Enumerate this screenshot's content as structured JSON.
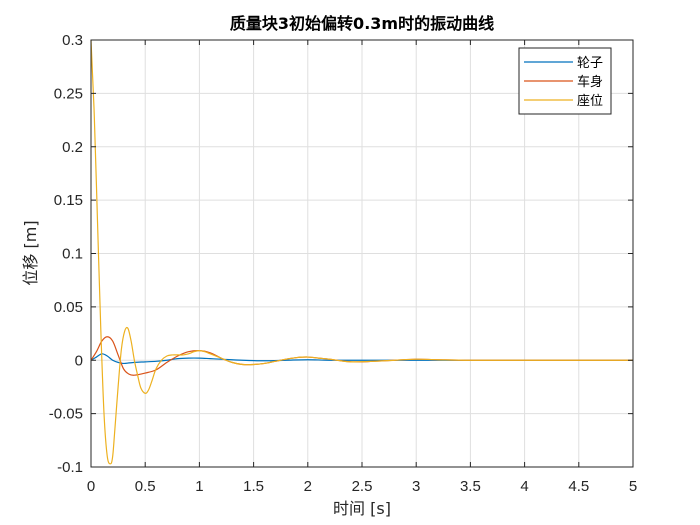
{
  "chart_data": {
    "type": "line",
    "title": "质量块3初始偏转0.3m时的振动曲线",
    "xlabel": "时间 [s]",
    "ylabel": "位移 [m]",
    "xlim": [
      0,
      5
    ],
    "ylim": [
      -0.1,
      0.3
    ],
    "xticks": [
      0,
      0.5,
      1,
      1.5,
      2,
      2.5,
      3,
      3.5,
      4,
      4.5,
      5
    ],
    "xtick_labels": [
      "0",
      "0.5",
      "1",
      "1.5",
      "2",
      "2.5",
      "3",
      "3.5",
      "4",
      "4.5",
      "5"
    ],
    "yticks": [
      -0.1,
      -0.05,
      0,
      0.05,
      0.1,
      0.15,
      0.2,
      0.25,
      0.3
    ],
    "ytick_labels": [
      "-0.1",
      "-0.05",
      "0",
      "0.05",
      "0.1",
      "0.15",
      "0.2",
      "0.25",
      "0.3"
    ],
    "grid": true,
    "legend_position": "top-right",
    "series": [
      {
        "name": "轮子",
        "color": "#0072BD",
        "x": [
          0,
          0.05,
          0.1,
          0.15,
          0.2,
          0.25,
          0.3,
          0.4,
          0.5,
          0.6,
          0.7,
          0.8,
          0.9,
          1.0,
          1.1,
          1.2,
          1.4,
          1.6,
          1.8,
          2.0,
          2.2,
          2.5,
          3.0,
          3.5,
          4.0,
          5.0
        ],
        "y": [
          0,
          0.003,
          0.006,
          0.004,
          0.0,
          -0.002,
          -0.003,
          -0.002,
          -0.0015,
          -0.001,
          0.0,
          0.0015,
          0.002,
          0.002,
          0.0015,
          0.001,
          0.0,
          -0.0005,
          0.0,
          0.0005,
          0.0,
          0.0,
          0.0,
          0.0,
          0.0,
          0.0
        ]
      },
      {
        "name": "车身",
        "color": "#D95319",
        "x": [
          0,
          0.05,
          0.1,
          0.15,
          0.2,
          0.25,
          0.3,
          0.35,
          0.4,
          0.5,
          0.6,
          0.7,
          0.8,
          0.9,
          1.0,
          1.1,
          1.2,
          1.3,
          1.4,
          1.5,
          1.6,
          1.7,
          1.8,
          1.9,
          2.0,
          2.1,
          2.2,
          2.3,
          2.4,
          2.5,
          2.6,
          2.8,
          3.0,
          3.2,
          3.5,
          4.0,
          4.5,
          5.0
        ],
        "y": [
          0,
          0.008,
          0.018,
          0.022,
          0.018,
          0.005,
          -0.008,
          -0.013,
          -0.014,
          -0.012,
          -0.009,
          -0.002,
          0.004,
          0.008,
          0.009,
          0.007,
          0.002,
          -0.002,
          -0.004,
          -0.004,
          -0.003,
          -0.001,
          0.001,
          0.0025,
          0.003,
          0.002,
          0.001,
          -0.0005,
          -0.0015,
          -0.0015,
          -0.001,
          0.0,
          0.001,
          0.0005,
          0.0,
          0.0,
          0.0,
          0.0
        ]
      },
      {
        "name": "座位",
        "color": "#EDB120",
        "x": [
          0,
          0.03,
          0.06,
          0.09,
          0.12,
          0.15,
          0.18,
          0.2,
          0.22,
          0.25,
          0.28,
          0.31,
          0.34,
          0.37,
          0.4,
          0.43,
          0.46,
          0.5,
          0.53,
          0.56,
          0.6,
          0.65,
          0.7,
          0.75,
          0.8,
          0.85,
          0.9,
          0.95,
          1.0,
          1.05,
          1.1,
          1.2,
          1.3,
          1.4,
          1.5,
          1.6,
          1.7,
          1.8,
          1.9,
          2.0,
          2.1,
          2.2,
          2.3,
          2.4,
          2.6,
          2.8,
          3.0,
          3.2,
          3.5,
          4.0,
          4.5,
          5.0
        ],
        "y": [
          0.3,
          0.23,
          0.13,
          0.03,
          -0.05,
          -0.09,
          -0.097,
          -0.09,
          -0.065,
          -0.025,
          0.01,
          0.027,
          0.03,
          0.018,
          0.0,
          -0.014,
          -0.026,
          -0.031,
          -0.028,
          -0.02,
          -0.008,
          0.0,
          0.004,
          0.005,
          0.005,
          0.005,
          0.006,
          0.008,
          0.009,
          0.008,
          0.006,
          0.002,
          -0.002,
          -0.004,
          -0.004,
          -0.003,
          -0.001,
          0.001,
          0.0025,
          0.003,
          0.002,
          0.001,
          -0.0005,
          -0.0015,
          -0.001,
          0.0,
          0.001,
          0.0005,
          0.0,
          0.0,
          0.0,
          0.0
        ]
      }
    ]
  }
}
